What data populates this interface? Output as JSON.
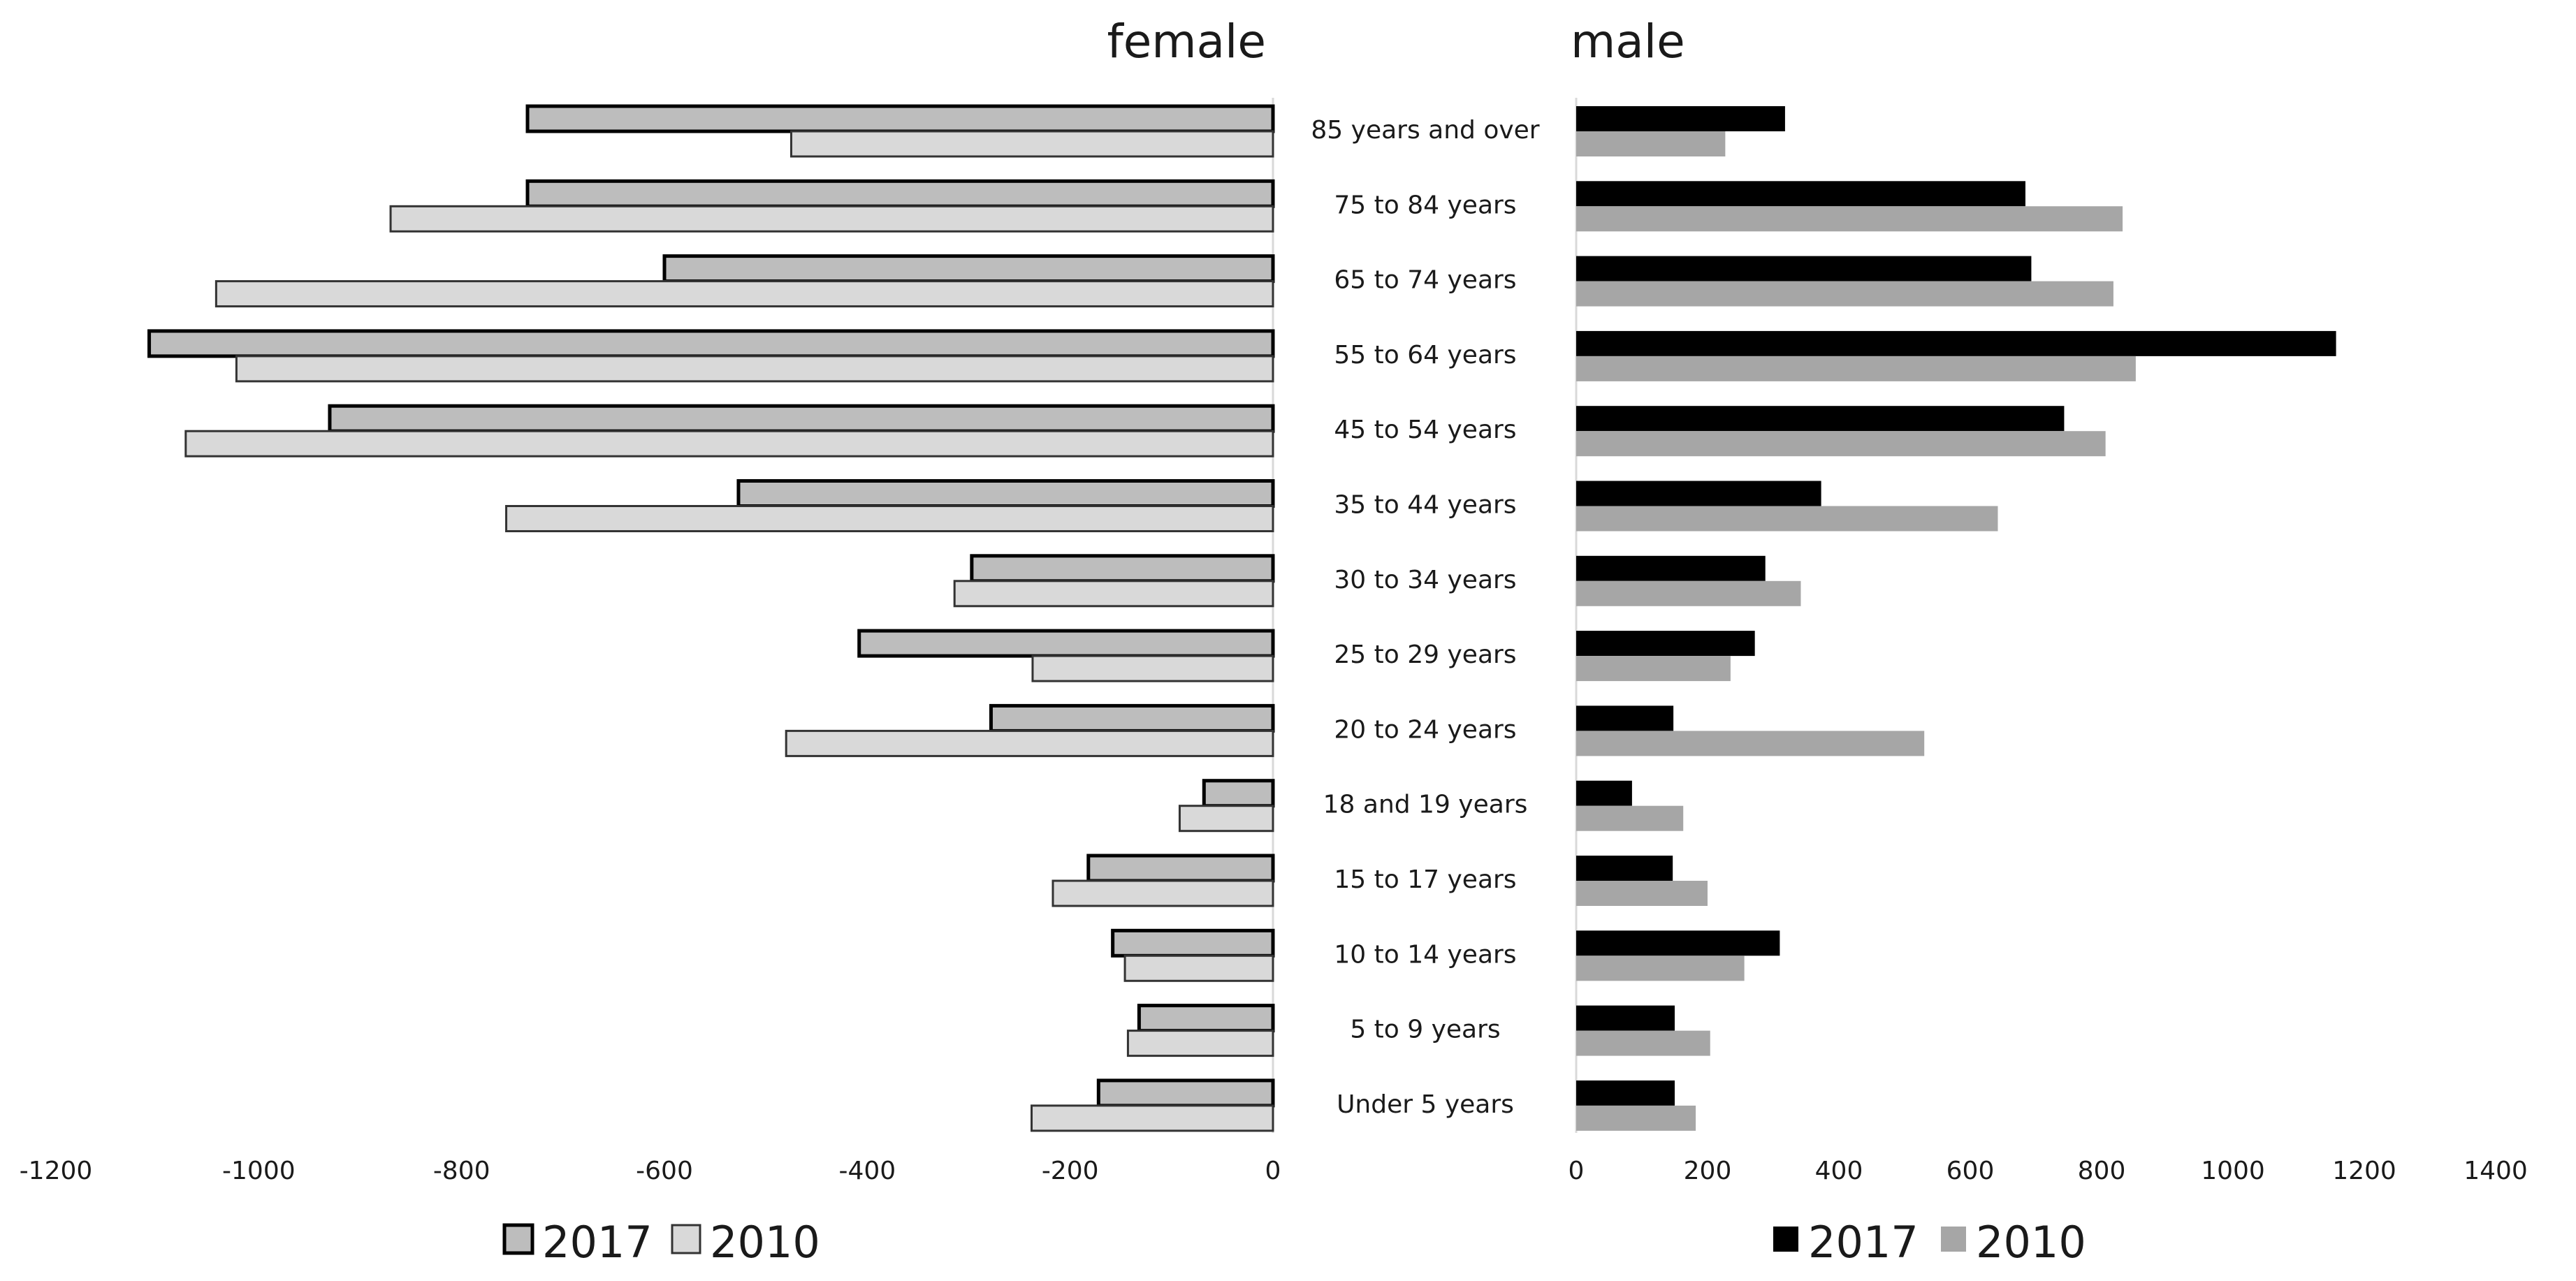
{
  "chart_data": [
    {
      "panel": "female",
      "type": "bar",
      "orientation": "horizontal",
      "title": "female",
      "categories": [
        "85 years and over",
        "75 to 84 years",
        "65 to 74 years",
        "55 to 64 years",
        "45 to 54 years",
        "35 to 44 years",
        "30 to 34 years",
        "25 to 29 years",
        "20 to 24 years",
        "18 and 19 years",
        "15 to 17 years",
        "10 to 14 years",
        "5 to 9 years",
        "Under 5 years"
      ],
      "series": [
        {
          "name": "2017",
          "color": "#bdbdbd",
          "values": [
            -735,
            -735,
            -600,
            -1108,
            -930,
            -527,
            -297,
            -408,
            -278,
            -68,
            -182,
            -158,
            -132,
            -172
          ]
        },
        {
          "name": "2010",
          "color": "#d9d9d9",
          "values": [
            -475,
            -870,
            -1042,
            -1022,
            -1072,
            -756,
            -314,
            -237,
            -480,
            -92,
            -217,
            -146,
            -143,
            -238
          ]
        }
      ],
      "xlim": [
        -1200,
        0
      ],
      "xticks": [
        "-1200",
        "-1000",
        "-800",
        "-600",
        "-400",
        "-200",
        "0"
      ],
      "legend": [
        "2017",
        "2010"
      ],
      "legend_position": "bottom-center"
    },
    {
      "panel": "male",
      "type": "bar",
      "orientation": "horizontal",
      "title": "male",
      "categories": [
        "85 years and over",
        "75 to 84 years",
        "65 to 74 years",
        "55 to 64 years",
        "45 to 54 years",
        "35 to 44 years",
        "30 to 34 years",
        "25 to 29 years",
        "20 to 24 years",
        "18 and 19 years",
        "15 to 17 years",
        "10 to 14 years",
        "5 to 9 years",
        "Under 5 years"
      ],
      "series": [
        {
          "name": "2017",
          "color": "#000000",
          "values": [
            318,
            684,
            693,
            1157,
            743,
            373,
            288,
            272,
            148,
            85,
            147,
            310,
            150,
            150
          ]
        },
        {
          "name": "2010",
          "color": "#a6a6a6",
          "values": [
            227,
            832,
            818,
            852,
            806,
            642,
            342,
            235,
            530,
            163,
            200,
            256,
            204,
            182
          ]
        }
      ],
      "xlim": [
        0,
        1400
      ],
      "xticks": [
        "0",
        "200",
        "400",
        "600",
        "800",
        "1000",
        "1200",
        "1400"
      ],
      "legend": [
        "2017",
        "2010"
      ],
      "legend_position": "bottom-center"
    }
  ]
}
